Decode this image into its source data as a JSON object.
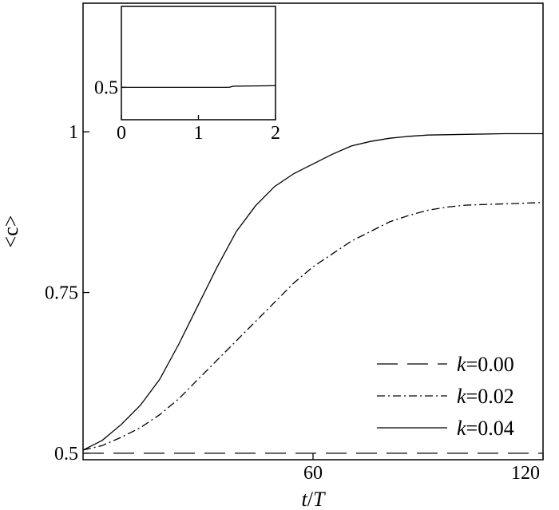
{
  "chart_data": {
    "main": {
      "type": "line",
      "xlabel": {
        "italic_part1": "t",
        "plain_part": "/",
        "italic_part2": "T"
      },
      "ylabel": "<c>",
      "xlim": [
        0,
        120
      ],
      "ylim": [
        0.49,
        1.2
      ],
      "xticks": [
        {
          "value": 60,
          "label": "60"
        },
        {
          "value": 120,
          "label": "120"
        }
      ],
      "yticks": [
        {
          "value": 0.5,
          "label": "0.5"
        },
        {
          "value": 0.75,
          "label": "0.75"
        },
        {
          "value": 1.0,
          "label": "1"
        }
      ],
      "legend_position": "bottom-right",
      "series": [
        {
          "name_var": "k",
          "name_value": "=0.00",
          "style": "dashed",
          "x": [
            0,
            120
          ],
          "y": [
            0.5,
            0.5
          ]
        },
        {
          "name_var": "k",
          "name_value": "=0.02",
          "style": "dashdot",
          "x": [
            0,
            5,
            10,
            15,
            20,
            25,
            30,
            35,
            40,
            45,
            50,
            55,
            60,
            65,
            70,
            75,
            80,
            85,
            90,
            95,
            100,
            110,
            120
          ],
          "y": [
            0.505,
            0.512,
            0.525,
            0.54,
            0.56,
            0.585,
            0.615,
            0.645,
            0.675,
            0.705,
            0.735,
            0.765,
            0.79,
            0.81,
            0.83,
            0.845,
            0.86,
            0.87,
            0.878,
            0.883,
            0.886,
            0.888,
            0.89
          ]
        },
        {
          "name_var": "k",
          "name_value": "=0.04",
          "style": "solid",
          "x": [
            0,
            5,
            10,
            15,
            20,
            25,
            30,
            35,
            40,
            45,
            50,
            55,
            60,
            65,
            70,
            75,
            80,
            85,
            90,
            100,
            110,
            120
          ],
          "y": [
            0.505,
            0.52,
            0.545,
            0.575,
            0.615,
            0.67,
            0.73,
            0.79,
            0.845,
            0.885,
            0.915,
            0.935,
            0.95,
            0.965,
            0.978,
            0.985,
            0.99,
            0.993,
            0.995,
            0.996,
            0.997,
            0.997
          ]
        }
      ]
    },
    "inset": {
      "type": "line",
      "xlim": [
        0,
        2
      ],
      "ylim": [
        0.3,
        1.0
      ],
      "xticks": [
        {
          "value": 0,
          "label": "0"
        },
        {
          "value": 1,
          "label": "1"
        },
        {
          "value": 2,
          "label": "2"
        }
      ],
      "yticks": [
        {
          "value": 0.5,
          "label": "0.5"
        }
      ],
      "series": [
        {
          "style": "solid",
          "x": [
            0,
            1.0,
            1.4,
            1.45,
            2.0
          ],
          "y": [
            0.5,
            0.5,
            0.5,
            0.507,
            0.51
          ]
        }
      ]
    }
  }
}
